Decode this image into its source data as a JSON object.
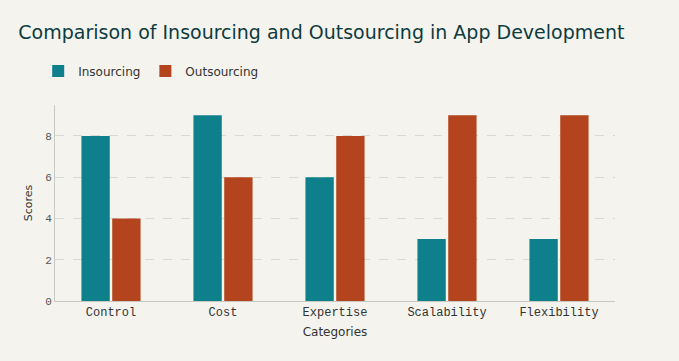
{
  "chart_data": {
    "type": "bar",
    "title": "Comparison of Insourcing and Outsourcing in App Development",
    "x_label": "Categories",
    "y_label": "Scores",
    "categories": [
      "Control",
      "Cost",
      "Expertise",
      "Scalability",
      "Flexibility"
    ],
    "series": [
      {
        "name": "Insourcing",
        "color": "#0e808c",
        "values": [
          8,
          9,
          6,
          3,
          3
        ]
      },
      {
        "name": "Outsourcing",
        "color": "#b3441e",
        "values": [
          4,
          6,
          8,
          9,
          9
        ]
      }
    ],
    "ylim": [
      0,
      9.5
    ],
    "yticks": [
      0,
      2,
      4,
      6,
      8
    ],
    "grid": true,
    "legend": "top-left"
  }
}
